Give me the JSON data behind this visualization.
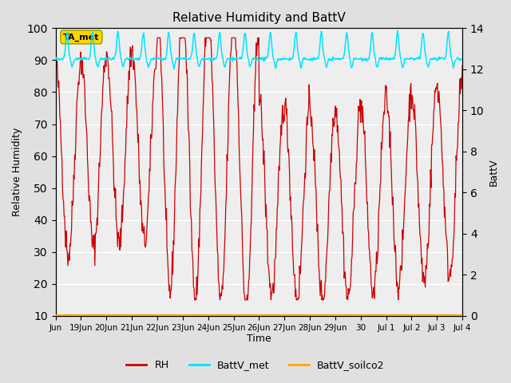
{
  "title": "Relative Humidity and BattV",
  "ylabel_left": "Relative Humidity",
  "ylabel_right": "BattV",
  "xlabel": "Time",
  "ylim_left": [
    10,
    100
  ],
  "ylim_right": [
    0,
    14
  ],
  "yticks_left": [
    10,
    20,
    30,
    40,
    50,
    60,
    70,
    80,
    90,
    100
  ],
  "yticks_right": [
    0,
    2,
    4,
    6,
    8,
    10,
    12,
    14
  ],
  "bg_color": "#e0e0e0",
  "plot_bg_color": "#eeeeee",
  "rh_color": "#cc0000",
  "battv_met_color": "#00e5ff",
  "battv_soilco2_color": "#ffa500",
  "annotation_box_color": "#ffd700",
  "annotation_text": "TA_met",
  "xtick_labels": [
    "Jun",
    "19Jun",
    "20Jun",
    "21Jun",
    "22Jun",
    "23Jun",
    "24Jun",
    "25Jun",
    "26Jun",
    "27Jun",
    "28Jun",
    "29Jun",
    "30",
    "Jul 1",
    "Jul 2",
    "Jul 3",
    "Jul 4"
  ],
  "legend_labels": [
    "RH",
    "BattV_met",
    "BattV_soilco2"
  ],
  "n_days": 16
}
